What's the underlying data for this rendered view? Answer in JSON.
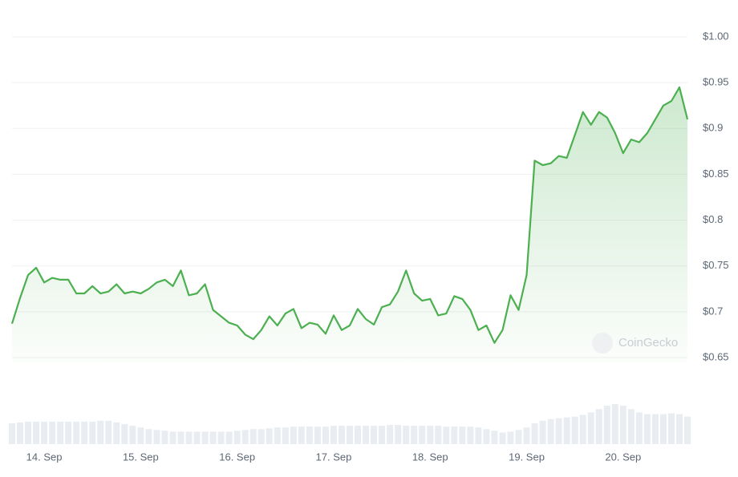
{
  "chart_data": {
    "type": "line",
    "color": "#4caf50",
    "volume_color": "#e9edf2",
    "watermark": "CoinGecko",
    "ylim": [
      0.65,
      1.0
    ],
    "yticks": [
      {
        "value": 1.0,
        "label": "$1.00"
      },
      {
        "value": 0.95,
        "label": "$0.95"
      },
      {
        "value": 0.9,
        "label": "$0.9"
      },
      {
        "value": 0.85,
        "label": "$0.85"
      },
      {
        "value": 0.8,
        "label": "$0.8"
      },
      {
        "value": 0.75,
        "label": "$0.75"
      },
      {
        "value": 0.7,
        "label": "$0.7"
      },
      {
        "value": 0.65,
        "label": "$0.65"
      }
    ],
    "grid": true,
    "categories": [
      null,
      null,
      null,
      null,
      "14. Sep",
      null,
      null,
      null,
      null,
      null,
      null,
      null,
      null,
      null,
      null,
      null,
      "15. Sep",
      null,
      null,
      null,
      null,
      null,
      null,
      null,
      null,
      null,
      null,
      null,
      "16. Sep",
      null,
      null,
      null,
      null,
      null,
      null,
      null,
      null,
      null,
      null,
      null,
      "17. Sep",
      null,
      null,
      null,
      null,
      null,
      null,
      null,
      null,
      null,
      null,
      null,
      "18. Sep",
      null,
      null,
      null,
      null,
      null,
      null,
      null,
      null,
      null,
      null,
      null,
      "19. Sep",
      null,
      null,
      null,
      null,
      null,
      null,
      null,
      null,
      null,
      null,
      null,
      "20. Sep",
      null,
      null,
      null,
      null,
      null,
      null,
      null,
      null
    ],
    "values": [
      0.687,
      0.715,
      0.74,
      0.748,
      0.732,
      0.737,
      0.735,
      0.735,
      0.72,
      0.72,
      0.728,
      0.72,
      0.722,
      0.73,
      0.72,
      0.722,
      0.72,
      0.725,
      0.732,
      0.735,
      0.728,
      0.745,
      0.718,
      0.72,
      0.73,
      0.702,
      0.695,
      0.688,
      0.685,
      0.675,
      0.67,
      0.68,
      0.695,
      0.685,
      0.698,
      0.703,
      0.682,
      0.688,
      0.686,
      0.676,
      0.696,
      0.68,
      0.685,
      0.703,
      0.692,
      0.686,
      0.705,
      0.708,
      0.722,
      0.745,
      0.72,
      0.712,
      0.714,
      0.696,
      0.698,
      0.717,
      0.714,
      0.702,
      0.68,
      0.685,
      0.666,
      0.68,
      0.718,
      0.702,
      0.74,
      0.865,
      0.86,
      0.862,
      0.87,
      0.868,
      0.893,
      0.918,
      0.904,
      0.918,
      0.912,
      0.895,
      0.873,
      0.888,
      0.885,
      0.895,
      0.91,
      0.925,
      0.93,
      0.945,
      0.91
    ],
    "volume": [
      25,
      26,
      27,
      27,
      27,
      27,
      27,
      27,
      27,
      27,
      27,
      28,
      28,
      26,
      24,
      22,
      20,
      18,
      17,
      16,
      15,
      15,
      15,
      15,
      15,
      15,
      15,
      15,
      16,
      17,
      18,
      18,
      19,
      20,
      20,
      21,
      21,
      21,
      21,
      21,
      22,
      22,
      22,
      22,
      22,
      22,
      22,
      23,
      23,
      22,
      22,
      22,
      22,
      22,
      21,
      21,
      21,
      21,
      20,
      18,
      16,
      14,
      15,
      17,
      20,
      25,
      28,
      30,
      31,
      32,
      33,
      35,
      38,
      42,
      46,
      48,
      46,
      42,
      38,
      36,
      36,
      36,
      37,
      36,
      33
    ]
  }
}
